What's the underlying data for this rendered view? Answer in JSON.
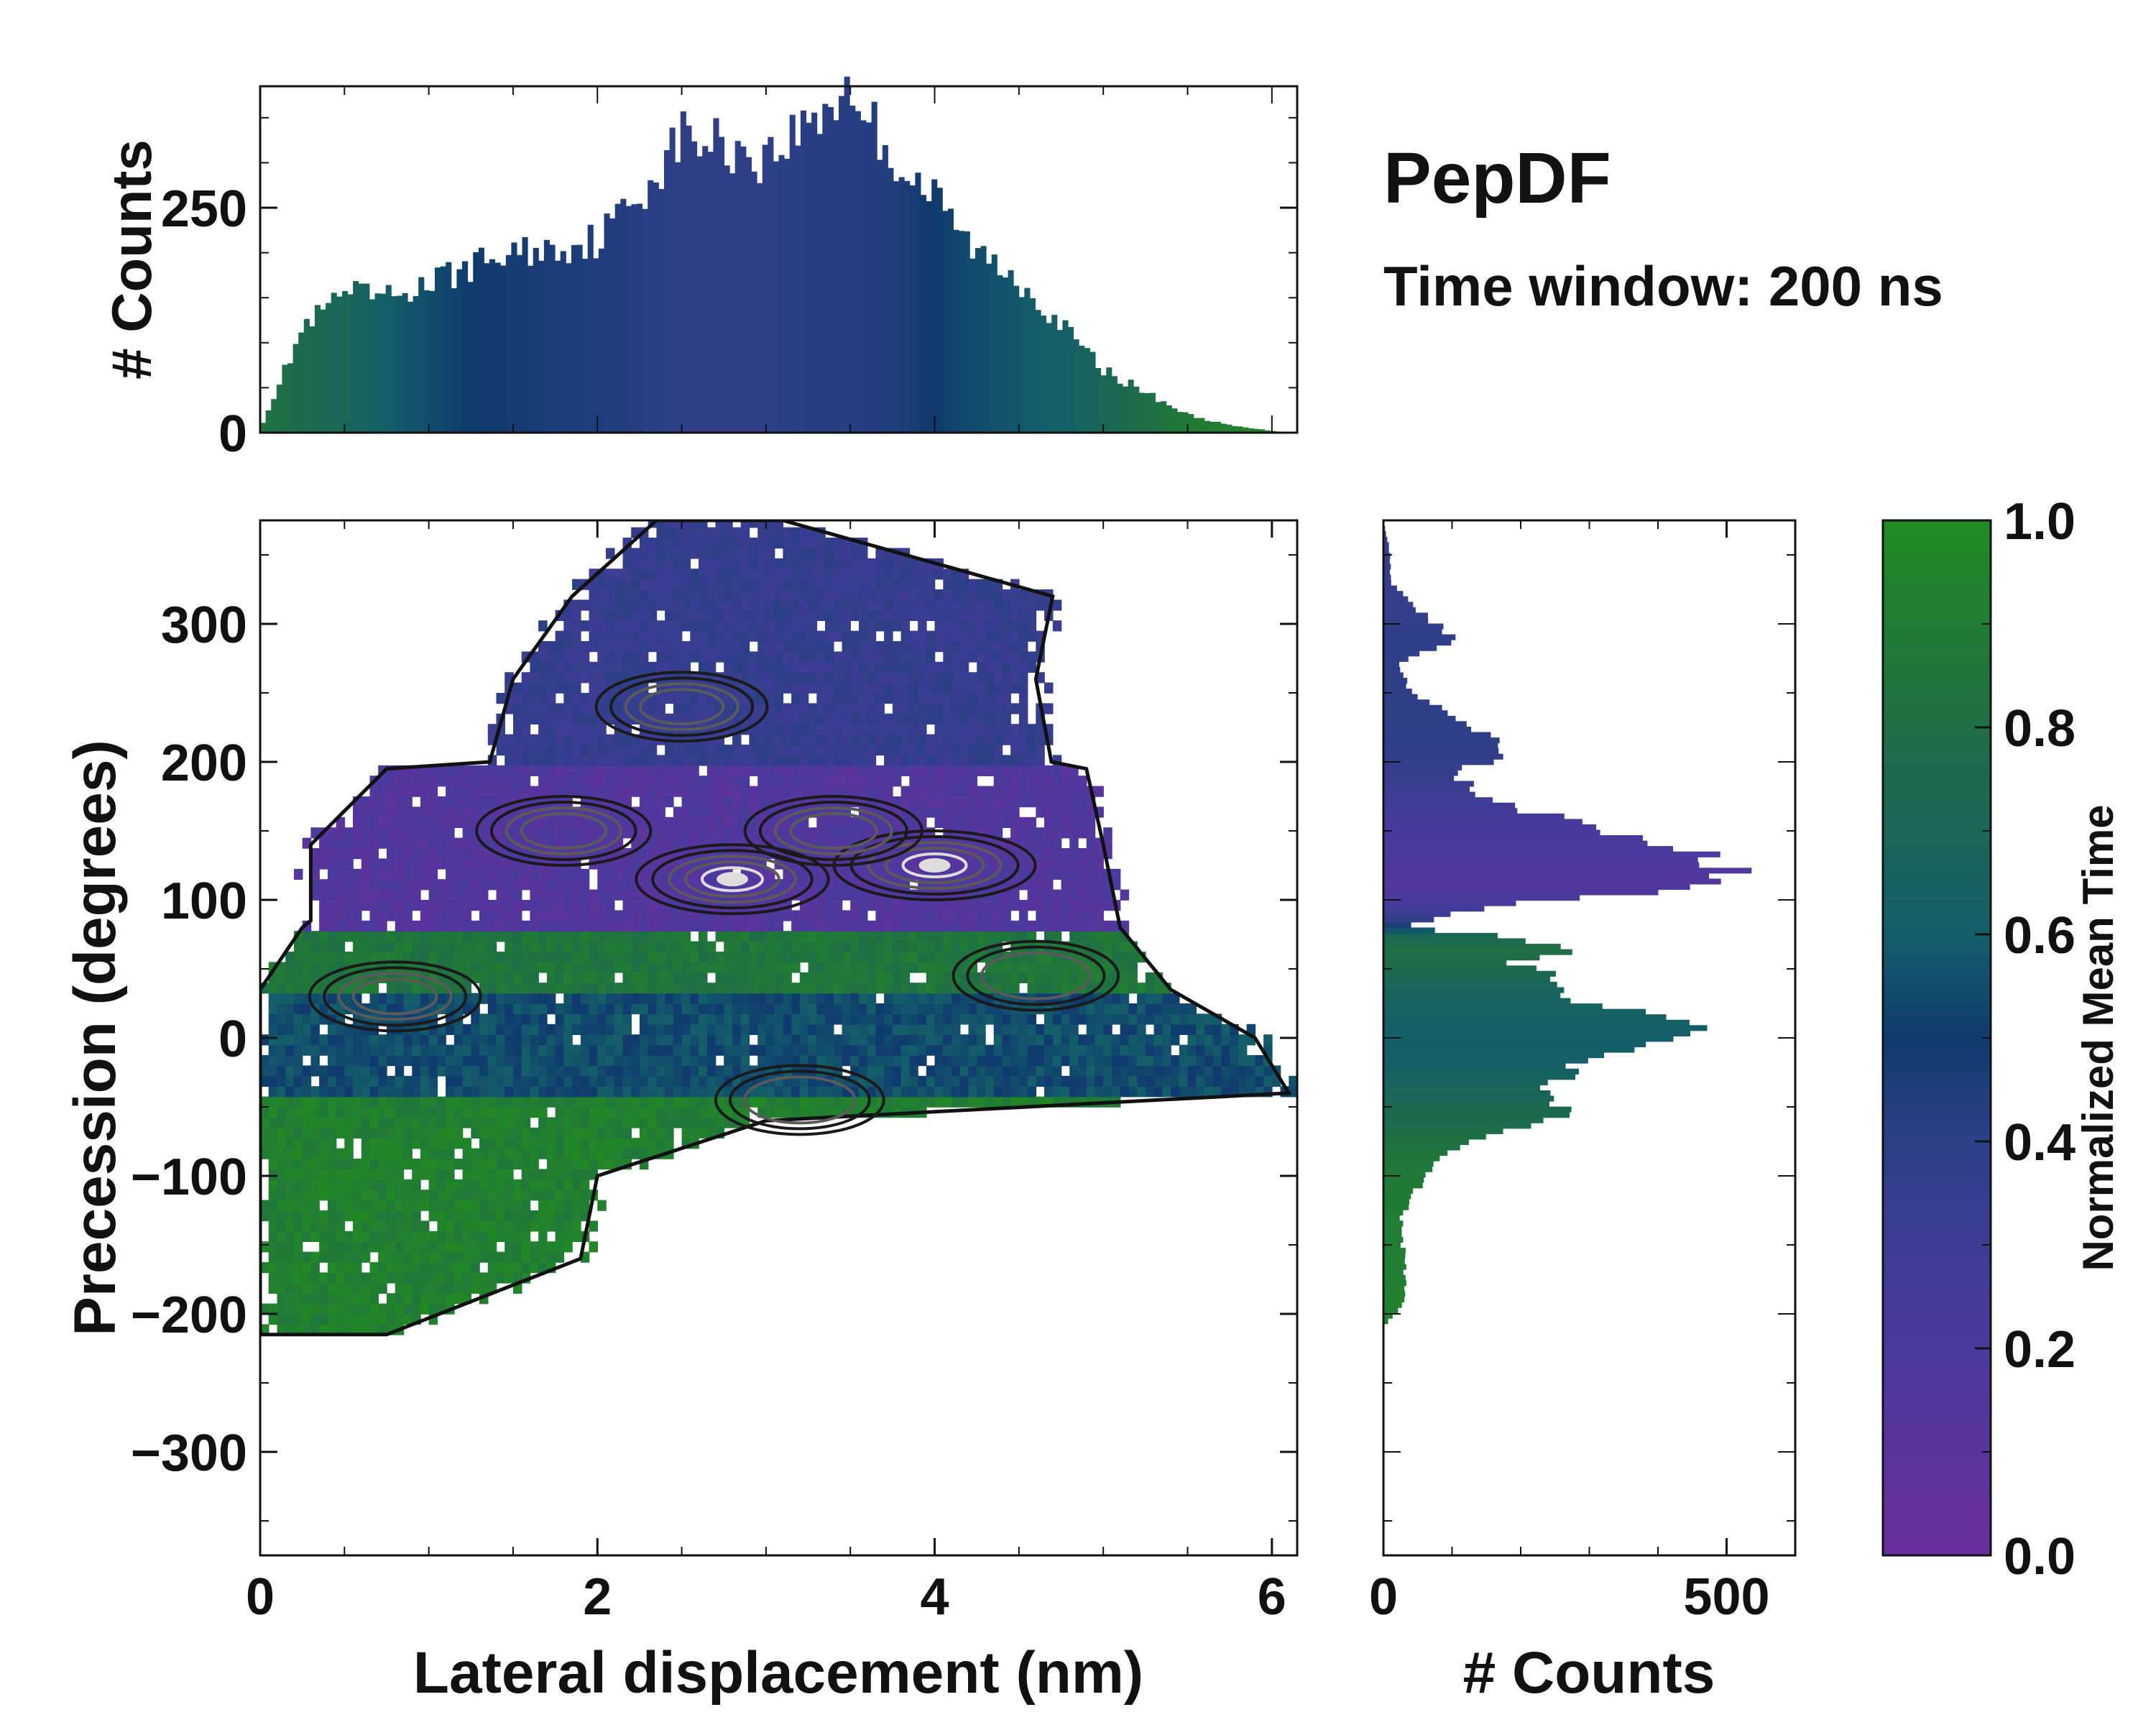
{
  "figure": {
    "title": "PepDF",
    "subtitle": "Time window: 200 ns"
  },
  "colors": {
    "cmap_low": "#6a2e9c",
    "cmap_02": "#4a3a9e",
    "cmap_04": "#2e3f88",
    "cmap_05": "#0f3b6e",
    "cmap_06": "#145e6a",
    "cmap_08": "#1f6e45",
    "cmap_high": "#228b22",
    "contour_dark": "#1a1a1a",
    "contour_mid": "#5a5a5a",
    "contour_light": "#dddddd"
  },
  "chart_data": [
    {
      "id": "main",
      "type": "heatmap",
      "title": "",
      "xlabel": "Lateral displacement (nm)",
      "ylabel": "Precession (degrees)",
      "xlim": [
        0,
        6.15
      ],
      "ylim": [
        -375,
        375
      ],
      "xticks": [
        0,
        2,
        4,
        6
      ],
      "xtick_labels": [
        "0",
        "2",
        "4",
        "6"
      ],
      "yticks": [
        -300,
        -200,
        -100,
        0,
        100,
        200,
        300
      ],
      "ytick_labels": [
        "−300",
        "−200",
        "−100",
        "0",
        "100",
        "200",
        "300"
      ],
      "color_scale": "Normalized Mean Time",
      "bands": [
        {
          "y_from": -215,
          "y_to": -40,
          "x_shape": [
            [
              -215,
              0.0,
              0.75
            ],
            [
              -160,
              0.0,
              1.9
            ],
            [
              -100,
              0.0,
              2.0
            ],
            [
              -60,
              0.0,
              3.0
            ],
            [
              -40,
              0.0,
              6.1
            ]
          ],
          "value": 0.92
        },
        {
          "y_from": -40,
          "y_to": 35,
          "x_shape": [
            [
              -40,
              0.0,
              6.1
            ],
            [
              0,
              0.0,
              5.9
            ],
            [
              35,
              0.0,
              5.4
            ]
          ],
          "value": 0.55
        },
        {
          "y_from": 35,
          "y_to": 80,
          "x_shape": [
            [
              35,
              0.0,
              5.4
            ],
            [
              80,
              0.25,
              5.1
            ]
          ],
          "value": 0.85
        },
        {
          "y_from": 80,
          "y_to": 195,
          "x_shape": [
            [
              80,
              0.3,
              5.1
            ],
            [
              140,
              0.3,
              5.0
            ],
            [
              195,
              0.75,
              4.9
            ]
          ],
          "value": 0.15
        },
        {
          "y_from": 195,
          "y_to": 375,
          "x_shape": [
            [
              195,
              1.35,
              4.7
            ],
            [
              260,
              1.5,
              4.6
            ],
            [
              320,
              1.85,
              4.7
            ],
            [
              375,
              2.35,
              3.1
            ]
          ],
          "value": 0.35
        }
      ],
      "hotspots": [
        {
          "x": 4.0,
          "y": 125,
          "level": 1.0
        },
        {
          "x": 2.8,
          "y": 115,
          "level": 0.85
        },
        {
          "x": 3.4,
          "y": 150,
          "level": 0.6
        },
        {
          "x": 1.8,
          "y": 150,
          "level": 0.55
        },
        {
          "x": 2.5,
          "y": 240,
          "level": 0.5
        },
        {
          "x": 0.8,
          "y": 30,
          "level": 0.5
        },
        {
          "x": 3.2,
          "y": -45,
          "level": 0.45
        },
        {
          "x": 4.6,
          "y": 45,
          "level": 0.4
        }
      ]
    },
    {
      "id": "top_histogram",
      "type": "bar",
      "xlabel": "",
      "ylabel": "# Counts",
      "xlim": [
        0,
        6.15
      ],
      "ylim": [
        0,
        385
      ],
      "yticks": [
        0,
        250
      ],
      "ytick_labels": [
        "0",
        "250"
      ],
      "x": [
        0.0,
        0.25,
        0.5,
        0.75,
        1.0,
        1.25,
        1.5,
        1.75,
        2.0,
        2.25,
        2.5,
        2.75,
        3.0,
        3.25,
        3.5,
        3.75,
        4.0,
        4.25,
        4.5,
        4.75,
        5.0,
        5.25,
        5.5,
        5.75,
        6.0,
        6.15
      ],
      "values": [
        5,
        115,
        155,
        150,
        165,
        185,
        200,
        205,
        215,
        265,
        330,
        320,
        305,
        345,
        385,
        305,
        260,
        200,
        170,
        120,
        70,
        45,
        20,
        8,
        2,
        0
      ],
      "bar_color_values": [
        0.85,
        0.75,
        0.7,
        0.6,
        0.55,
        0.5,
        0.48,
        0.46,
        0.45,
        0.42,
        0.4,
        0.4,
        0.4,
        0.42,
        0.42,
        0.44,
        0.5,
        0.55,
        0.58,
        0.62,
        0.7,
        0.8,
        0.88,
        0.92,
        0.95,
        0.95
      ]
    },
    {
      "id": "right_histogram",
      "type": "bar",
      "orientation": "horizontal",
      "xlabel": "# Counts",
      "ylabel": "",
      "xlim": [
        0,
        600
      ],
      "ylim": [
        -375,
        375
      ],
      "xticks": [
        0,
        500
      ],
      "xtick_labels": [
        "0",
        "500"
      ],
      "y": [
        -210,
        -190,
        -160,
        -130,
        -100,
        -85,
        -70,
        -55,
        -40,
        -25,
        -10,
        0,
        10,
        25,
        40,
        55,
        65,
        75,
        80,
        90,
        100,
        110,
        120,
        130,
        150,
        170,
        190,
        210,
        230,
        250,
        270,
        290,
        310,
        330,
        350,
        375
      ],
      "values": [
        0,
        30,
        30,
        25,
        60,
        90,
        150,
        250,
        230,
        260,
        330,
        490,
        420,
        300,
        260,
        180,
        270,
        160,
        30,
        100,
        240,
        480,
        540,
        490,
        350,
        170,
        100,
        190,
        110,
        40,
        20,
        110,
        50,
        10,
        10,
        0
      ],
      "bar_color_values": [
        0.95,
        0.92,
        0.9,
        0.9,
        0.88,
        0.85,
        0.8,
        0.75,
        0.7,
        0.65,
        0.6,
        0.6,
        0.62,
        0.65,
        0.7,
        0.78,
        0.8,
        0.7,
        0.5,
        0.3,
        0.2,
        0.15,
        0.15,
        0.18,
        0.22,
        0.28,
        0.35,
        0.38,
        0.4,
        0.4,
        0.4,
        0.38,
        0.36,
        0.36,
        0.36,
        0.36
      ]
    },
    {
      "id": "colorbar",
      "type": "heatmap",
      "ylabel": "Normalized Mean Time",
      "ylim": [
        0,
        1
      ],
      "yticks": [
        0.0,
        0.2,
        0.4,
        0.6,
        0.8,
        1.0
      ],
      "ytick_labels": [
        "0.0",
        "0.2",
        "0.4",
        "0.6",
        "0.8",
        "1.0"
      ]
    }
  ]
}
